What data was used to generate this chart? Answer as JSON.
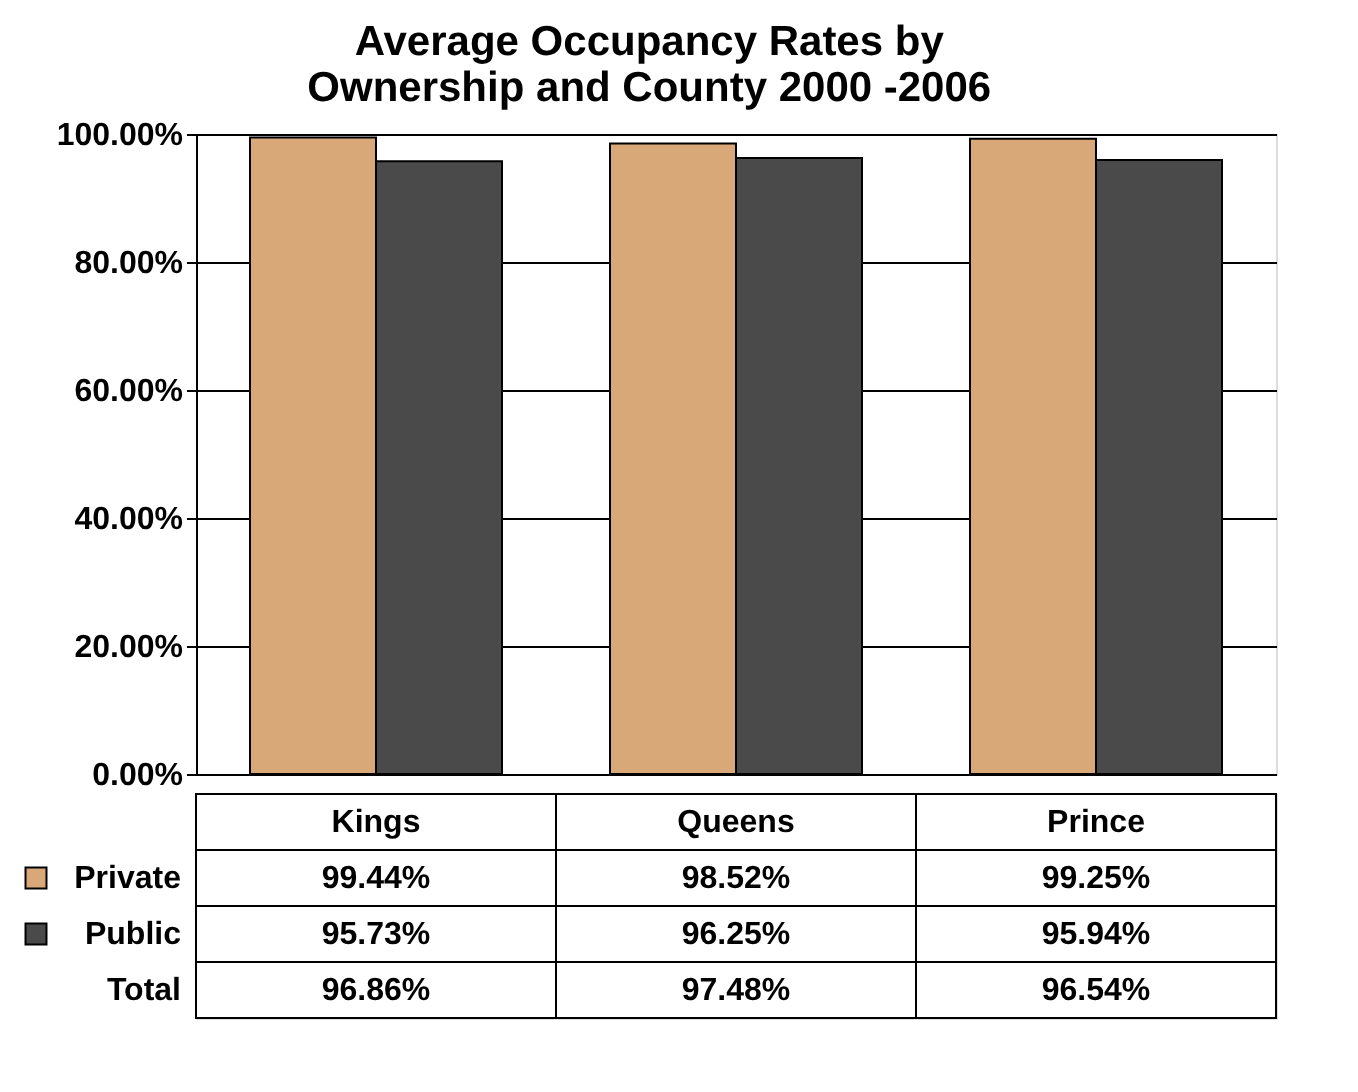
{
  "chart_data": {
    "type": "bar",
    "title": [
      "Average Occupancy Rates by",
      "Ownership and County 2000 -2006"
    ],
    "categories": [
      "Kings",
      "Queens",
      "Prince"
    ],
    "series": [
      {
        "name": "Private",
        "color": "#d9a878",
        "values": [
          99.44,
          98.52,
          99.25
        ],
        "value_labels": [
          "99.44%",
          "98.52%",
          "99.25%"
        ]
      },
      {
        "name": "Public",
        "color": "#4a4a4a",
        "values": [
          95.73,
          96.25,
          95.94
        ],
        "value_labels": [
          "95.73%",
          "96.25%",
          "95.94%"
        ]
      }
    ],
    "annotations": [
      "Total",
      "96.86%",
      "97.48%",
      "96.54%"
    ],
    "ylim": [
      0,
      100
    ],
    "yticks": [
      {
        "value": 0,
        "label": "0.00%"
      },
      {
        "value": 20,
        "label": "20.00%"
      },
      {
        "value": 40,
        "label": "40.00%"
      },
      {
        "value": 60,
        "label": "60.00%"
      },
      {
        "value": 80,
        "label": "80.00%"
      },
      {
        "value": 100,
        "label": "100.00%"
      }
    ],
    "grid": "y",
    "legend": "bottom left"
  }
}
